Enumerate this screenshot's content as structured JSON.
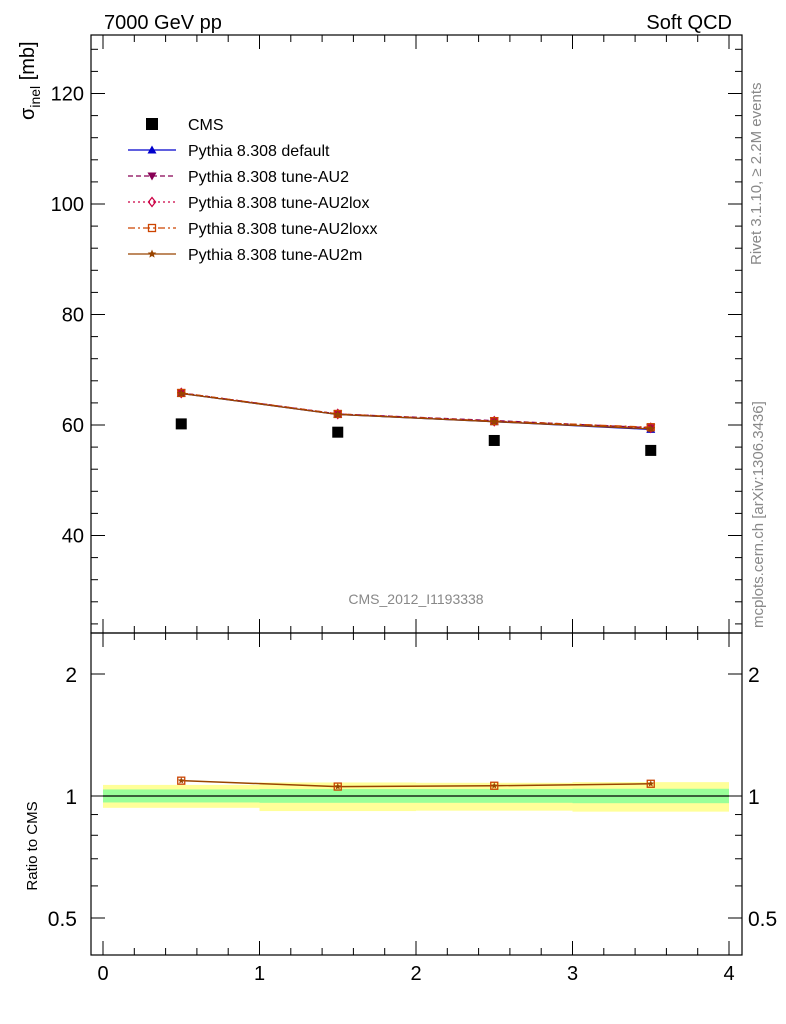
{
  "header": {
    "left": "7000 GeV pp",
    "right": "Soft QCD"
  },
  "side": {
    "rivet": "Rivet 3.1.10, ≥ 2.2M events",
    "mcplots": "mcplots.cern.ch [arXiv:1306.3436]"
  },
  "analysis_tag": "CMS_2012_I1193338",
  "chart_data": [
    {
      "type": "scatter",
      "panel": "main",
      "ylabel_main": "σ",
      "ylabel_sub": "inel",
      "ylabel_unit": " [mb]",
      "xlim": [
        0,
        4
      ],
      "ylim": [
        23,
        131
      ],
      "yticks": [
        40,
        60,
        80,
        100,
        120
      ],
      "legend_position": "top-left",
      "x": [
        0.5,
        1.5,
        2.5,
        3.5
      ],
      "series": [
        {
          "name": "CMS",
          "role": "data",
          "color": "#000000",
          "marker": "square",
          "values": [
            60.2,
            58.7,
            57.2,
            55.4
          ]
        },
        {
          "name": "Pythia 8.308 default",
          "color": "#0000cc",
          "marker": "triangle-up",
          "dash": "solid",
          "values": [
            65.7,
            61.9,
            60.6,
            59.2
          ]
        },
        {
          "name": "Pythia 8.308 tune-AU2",
          "color": "#880055",
          "marker": "triangle-down",
          "dash": "dashed",
          "values": [
            65.8,
            62.0,
            60.8,
            59.5
          ]
        },
        {
          "name": "Pythia 8.308 tune-AU2lox",
          "color": "#cc0044",
          "marker": "diamond-open",
          "dash": "dotdash",
          "values": [
            65.8,
            62.0,
            60.7,
            59.5
          ]
        },
        {
          "name": "Pythia 8.308 tune-AU2loxx",
          "color": "#cc4400",
          "marker": "square-open",
          "dash": "dashdot",
          "values": [
            65.8,
            62.0,
            60.7,
            59.6
          ]
        },
        {
          "name": "Pythia 8.308 tune-AU2m",
          "color": "#994400",
          "marker": "star",
          "dash": "solid",
          "values": [
            65.7,
            61.9,
            60.6,
            59.3
          ]
        }
      ]
    },
    {
      "type": "line",
      "panel": "ratio",
      "ylabel": "Ratio to CMS",
      "xlim": [
        0,
        4
      ],
      "ylim": [
        0.41,
        2.35
      ],
      "yticks": [
        0.5,
        1,
        2
      ],
      "ytick_labels": [
        "0.5",
        "1",
        "2"
      ],
      "xticks": [
        0,
        1,
        2,
        3,
        4
      ],
      "xtick_labels": [
        "0",
        "1",
        "2",
        "3",
        "4"
      ],
      "bands": {
        "bins": [
          [
            0,
            1
          ],
          [
            1,
            2
          ],
          [
            2,
            3
          ],
          [
            3,
            4
          ]
        ],
        "stat": [
          [
            0.964,
            1.038
          ],
          [
            0.962,
            1.04
          ],
          [
            0.962,
            1.04
          ],
          [
            0.96,
            1.042
          ]
        ],
        "total": [
          [
            0.935,
            1.065
          ],
          [
            0.918,
            1.08
          ],
          [
            0.92,
            1.078
          ],
          [
            0.915,
            1.082
          ]
        ],
        "stat_color": "#99ff99",
        "total_color": "#ffff99"
      },
      "x": [
        0.5,
        1.5,
        2.5,
        3.5
      ],
      "values": [
        1.091,
        1.055,
        1.06,
        1.072
      ]
    }
  ]
}
